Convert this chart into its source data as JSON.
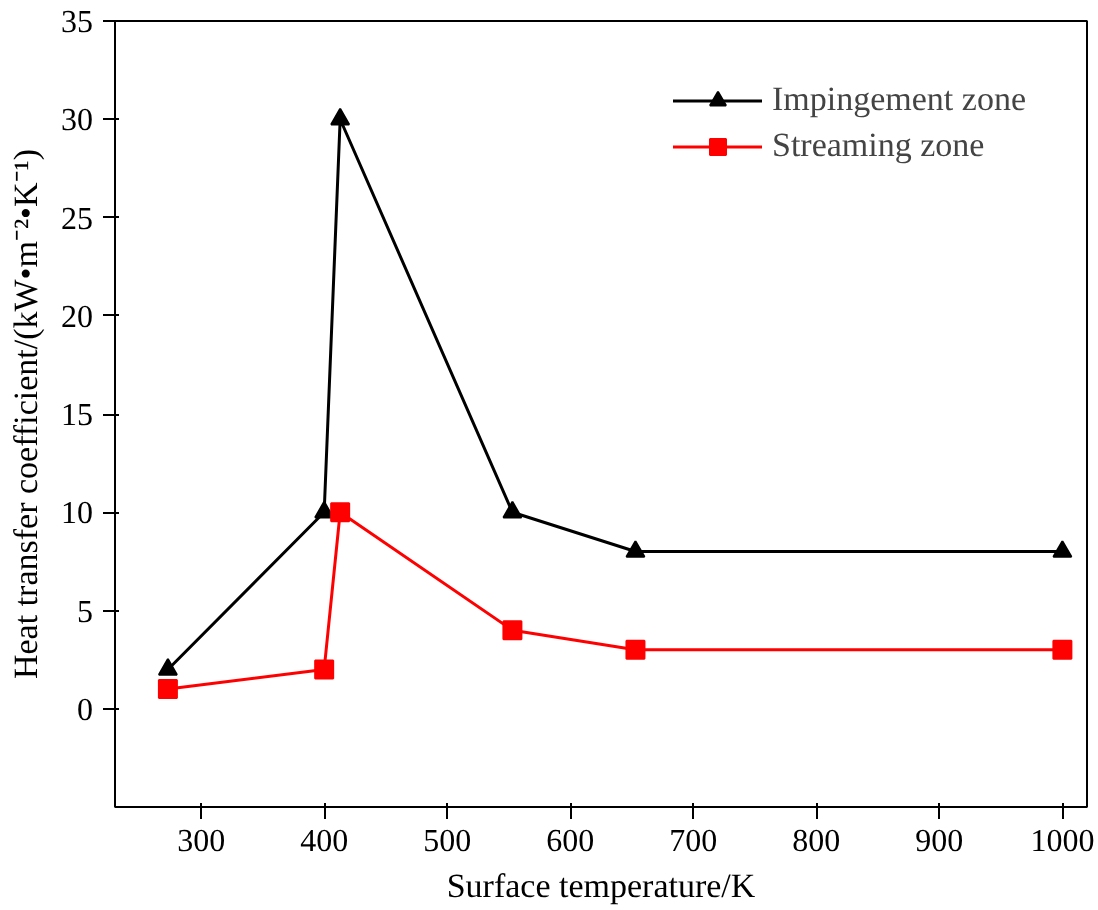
{
  "chart_data": {
    "type": "line",
    "xlabel": "Surface temperature/K",
    "ylabel": "Heat transfer coefficient/(kW•m⁻²•K⁻¹)",
    "xlim": [
      230,
      1020
    ],
    "xticks": [
      300,
      400,
      500,
      600,
      700,
      800,
      900,
      1000
    ],
    "ylim": [
      -5,
      35
    ],
    "yticks": [
      0,
      5,
      10,
      15,
      20,
      25,
      30,
      35
    ],
    "legend": "top right",
    "grid": false,
    "line_style": "solid",
    "series": [
      {
        "name": "Impingement zone",
        "color": "#000000",
        "marker": "triangle",
        "x": [
          273,
          400,
          413,
          553,
          653,
          1000
        ],
        "values": [
          2,
          10,
          30,
          10,
          8,
          8
        ]
      },
      {
        "name": "Streaming zone",
        "color": "#ff0000",
        "marker": "square",
        "x": [
          273,
          400,
          413,
          553,
          653,
          1000
        ],
        "values": [
          1,
          2,
          10,
          4,
          3,
          3
        ]
      }
    ]
  }
}
